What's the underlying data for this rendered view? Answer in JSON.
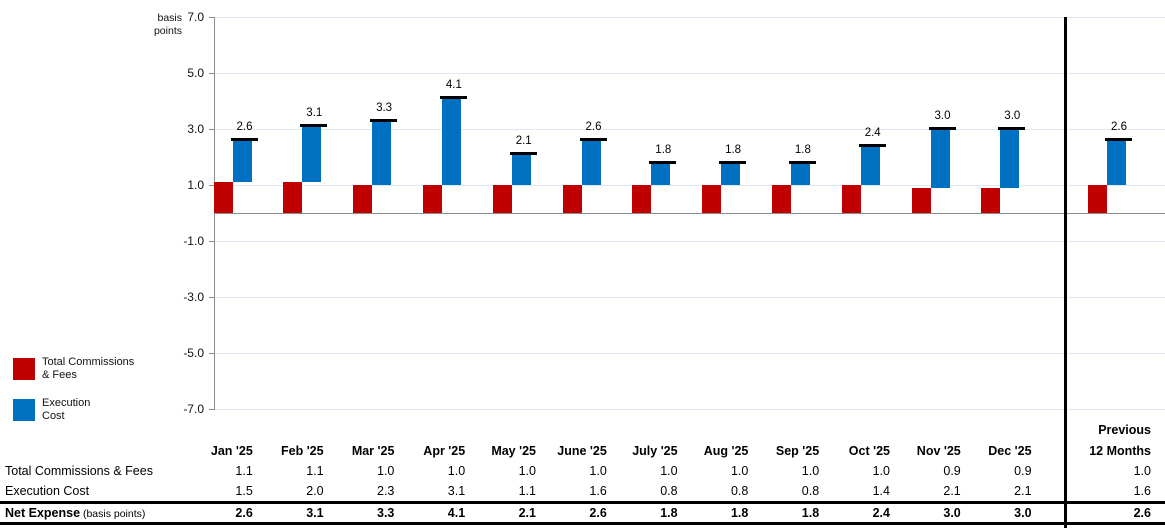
{
  "colors": {
    "commissions_red": "#c00000",
    "execution_blue": "#0070c0",
    "gridline": "#dee8f2",
    "axis_gray": "#8c8c8c",
    "cap_black": "#000000"
  },
  "chart": {
    "y_axis_title_lines": [
      "basis",
      "points"
    ],
    "y_tick_labels": [
      "7.0",
      "5.0",
      "3.0",
      "1.0",
      "-1.0",
      "-3.0",
      "-5.0",
      "-7.0"
    ],
    "legend": [
      {
        "label_lines": [
          "Total Commissions",
          "& Fees"
        ],
        "color": "#c00000"
      },
      {
        "label_lines": [
          "Execution",
          "Cost"
        ],
        "color": "#0070c0"
      }
    ]
  },
  "chart_data": {
    "type": "bar",
    "subtype": "waterfall",
    "title": "",
    "ylabel": "basis points",
    "ylim": [
      -7.0,
      7.0
    ],
    "ytick_step": 2.0,
    "grid": true,
    "legend_position": "bottom-left",
    "categories": [
      "Jan '25",
      "Feb '25",
      "Mar '25",
      "Apr '25",
      "May '25",
      "June '25",
      "July '25",
      "Aug '25",
      "Sep '25",
      "Oct '25",
      "Nov '25",
      "Dec '25",
      "Previous 12 Months"
    ],
    "series": [
      {
        "name": "Total Commissions & Fees",
        "color": "#c00000",
        "base": 0,
        "values": [
          1.1,
          1.1,
          1.0,
          1.0,
          1.0,
          1.0,
          1.0,
          1.0,
          1.0,
          1.0,
          0.9,
          0.9,
          1.0
        ]
      },
      {
        "name": "Execution Cost",
        "color": "#0070c0",
        "stacked_on": "Total Commissions & Fees",
        "values": [
          1.5,
          2.0,
          2.3,
          3.1,
          1.1,
          1.6,
          0.8,
          0.8,
          0.8,
          1.4,
          2.1,
          2.1,
          1.6
        ]
      }
    ],
    "totals": [
      2.6,
      3.1,
      3.3,
      4.1,
      2.1,
      2.6,
      1.8,
      1.8,
      1.8,
      2.4,
      3.0,
      3.0,
      2.6
    ],
    "total_labels": [
      "2.6",
      "3.1",
      "3.3",
      "4.1",
      "2.1",
      "2.6",
      "1.8",
      "1.8",
      "1.8",
      "2.4",
      "3.0",
      "3.0",
      "2.6"
    ]
  },
  "table": {
    "prev_header_line1": "Previous",
    "prev_header_line2": "12 Months",
    "month_headers": [
      "Jan '25",
      "Feb '25",
      "Mar '25",
      "Apr '25",
      "May '25",
      "June '25",
      "July '25",
      "Aug '25",
      "Sep '25",
      "Oct '25",
      "Nov '25",
      "Dec '25"
    ],
    "rows": [
      {
        "label": "Total Commissions & Fees",
        "label_suffix": "",
        "bold": false,
        "values": [
          "1.1",
          "1.1",
          "1.0",
          "1.0",
          "1.0",
          "1.0",
          "1.0",
          "1.0",
          "1.0",
          "1.0",
          "0.9",
          "0.9"
        ],
        "prev_value": "1.0"
      },
      {
        "label": "Execution Cost",
        "label_suffix": "",
        "bold": false,
        "values": [
          "1.5",
          "2.0",
          "2.3",
          "3.1",
          "1.1",
          "1.6",
          "0.8",
          "0.8",
          "0.8",
          "1.4",
          "2.1",
          "2.1"
        ],
        "prev_value": "1.6"
      },
      {
        "label": "Net Expense",
        "label_suffix": " (basis points)",
        "bold": true,
        "values": [
          "2.6",
          "3.1",
          "3.3",
          "4.1",
          "2.1",
          "2.6",
          "1.8",
          "1.8",
          "1.8",
          "2.4",
          "3.0",
          "3.0"
        ],
        "prev_value": "2.6"
      }
    ]
  }
}
